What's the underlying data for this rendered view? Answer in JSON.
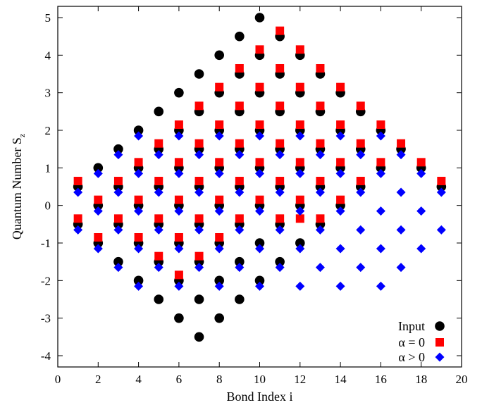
{
  "chart_data": {
    "type": "scatter",
    "xlabel": "Bond Index i",
    "ylabel": "Quantum Number S",
    "ylabel_sub": "z",
    "xlim": [
      0,
      20
    ],
    "ylim": [
      -4.3,
      5.3
    ],
    "x_ticks": [
      0,
      2,
      4,
      6,
      8,
      10,
      12,
      14,
      16,
      18,
      20
    ],
    "y_ticks": [
      -4,
      -3,
      -2,
      -1,
      0,
      1,
      2,
      3,
      4,
      5
    ],
    "legend_position": "bottom-right",
    "series": [
      {
        "name": "Input",
        "color": "#000000",
        "marker": "circle",
        "points": [
          [
            1,
            0.5
          ],
          [
            1,
            -0.5
          ],
          [
            2,
            1
          ],
          [
            2,
            0
          ],
          [
            2,
            -1
          ],
          [
            3,
            1.5
          ],
          [
            3,
            0.5
          ],
          [
            3,
            -0.5
          ],
          [
            3,
            -1.5
          ],
          [
            4,
            2
          ],
          [
            4,
            1
          ],
          [
            4,
            0
          ],
          [
            4,
            -1
          ],
          [
            4,
            -2
          ],
          [
            5,
            2.5
          ],
          [
            5,
            1.5
          ],
          [
            5,
            0.5
          ],
          [
            5,
            -0.5
          ],
          [
            5,
            -1.5
          ],
          [
            5,
            -2.5
          ],
          [
            6,
            3
          ],
          [
            6,
            2
          ],
          [
            6,
            1
          ],
          [
            6,
            0
          ],
          [
            6,
            -1
          ],
          [
            6,
            -2
          ],
          [
            6,
            -3
          ],
          [
            7,
            3.5
          ],
          [
            7,
            2.5
          ],
          [
            7,
            1.5
          ],
          [
            7,
            0.5
          ],
          [
            7,
            -0.5
          ],
          [
            7,
            -1.5
          ],
          [
            7,
            -2.5
          ],
          [
            7,
            -3.5
          ],
          [
            8,
            4
          ],
          [
            8,
            3
          ],
          [
            8,
            2
          ],
          [
            8,
            1
          ],
          [
            8,
            0
          ],
          [
            8,
            -1
          ],
          [
            8,
            -2
          ],
          [
            8,
            -3
          ],
          [
            9,
            4.5
          ],
          [
            9,
            3.5
          ],
          [
            9,
            2.5
          ],
          [
            9,
            1.5
          ],
          [
            9,
            0.5
          ],
          [
            9,
            -0.5
          ],
          [
            9,
            -1.5
          ],
          [
            9,
            -2.5
          ],
          [
            10,
            5
          ],
          [
            10,
            4
          ],
          [
            10,
            3
          ],
          [
            10,
            2
          ],
          [
            10,
            1
          ],
          [
            10,
            0
          ],
          [
            10,
            -1
          ],
          [
            10,
            -2
          ],
          [
            11,
            4.5
          ],
          [
            11,
            3.5
          ],
          [
            11,
            2.5
          ],
          [
            11,
            1.5
          ],
          [
            11,
            0.5
          ],
          [
            11,
            -0.5
          ],
          [
            11,
            -1.5
          ],
          [
            12,
            4
          ],
          [
            12,
            3
          ],
          [
            12,
            2
          ],
          [
            12,
            1
          ],
          [
            12,
            0
          ],
          [
            12,
            -1
          ],
          [
            13,
            3.5
          ],
          [
            13,
            2.5
          ],
          [
            13,
            1.5
          ],
          [
            13,
            0.5
          ],
          [
            13,
            -0.5
          ],
          [
            14,
            3
          ],
          [
            14,
            2
          ],
          [
            14,
            1
          ],
          [
            14,
            0
          ],
          [
            15,
            2.5
          ],
          [
            15,
            1.5
          ],
          [
            15,
            0.5
          ],
          [
            16,
            2
          ],
          [
            16,
            1
          ],
          [
            17,
            1.5
          ],
          [
            18,
            1
          ],
          [
            19,
            0.5
          ]
        ]
      },
      {
        "name": "α = 0",
        "color": "#ff0000",
        "marker": "square",
        "points": [
          [
            1,
            0.65
          ],
          [
            1,
            -0.35
          ],
          [
            2,
            0.15
          ],
          [
            2,
            -0.85
          ],
          [
            3,
            0.65
          ],
          [
            3,
            -0.35
          ],
          [
            4,
            1.15
          ],
          [
            4,
            0.15
          ],
          [
            4,
            -0.85
          ],
          [
            5,
            1.65
          ],
          [
            5,
            0.65
          ],
          [
            5,
            -0.35
          ],
          [
            5,
            -1.35
          ],
          [
            6,
            2.15
          ],
          [
            6,
            1.15
          ],
          [
            6,
            0.15
          ],
          [
            6,
            -0.85
          ],
          [
            6,
            -1.85
          ],
          [
            7,
            2.65
          ],
          [
            7,
            1.65
          ],
          [
            7,
            0.65
          ],
          [
            7,
            -0.35
          ],
          [
            7,
            -1.35
          ],
          [
            8,
            3.15
          ],
          [
            8,
            2.15
          ],
          [
            8,
            1.15
          ],
          [
            8,
            0.15
          ],
          [
            8,
            -0.85
          ],
          [
            9,
            3.65
          ],
          [
            9,
            2.65
          ],
          [
            9,
            1.65
          ],
          [
            9,
            0.65
          ],
          [
            9,
            -0.35
          ],
          [
            10,
            4.15
          ],
          [
            10,
            3.15
          ],
          [
            10,
            2.15
          ],
          [
            10,
            1.15
          ],
          [
            10,
            0.15
          ],
          [
            11,
            4.65
          ],
          [
            11,
            3.65
          ],
          [
            11,
            2.65
          ],
          [
            11,
            1.65
          ],
          [
            11,
            0.65
          ],
          [
            11,
            -0.35
          ],
          [
            12,
            4.15
          ],
          [
            12,
            3.15
          ],
          [
            12,
            2.15
          ],
          [
            12,
            1.15
          ],
          [
            12,
            0.15
          ],
          [
            12,
            -0.35
          ],
          [
            13,
            3.65
          ],
          [
            13,
            2.65
          ],
          [
            13,
            1.65
          ],
          [
            13,
            0.65
          ],
          [
            13,
            -0.35
          ],
          [
            14,
            3.15
          ],
          [
            14,
            2.15
          ],
          [
            14,
            1.15
          ],
          [
            14,
            0.15
          ],
          [
            15,
            2.65
          ],
          [
            15,
            1.65
          ],
          [
            15,
            0.65
          ],
          [
            16,
            2.15
          ],
          [
            16,
            1.15
          ],
          [
            17,
            1.65
          ],
          [
            18,
            1.15
          ],
          [
            19,
            0.65
          ]
        ]
      },
      {
        "name": "α > 0",
        "color": "#0000ff",
        "marker": "diamond",
        "points": [
          [
            1,
            0.35
          ],
          [
            1,
            -0.65
          ],
          [
            2,
            0.85
          ],
          [
            2,
            -0.15
          ],
          [
            2,
            -1.15
          ],
          [
            3,
            1.35
          ],
          [
            3,
            0.35
          ],
          [
            3,
            -0.65
          ],
          [
            3,
            -1.65
          ],
          [
            4,
            1.85
          ],
          [
            4,
            0.85
          ],
          [
            4,
            -0.15
          ],
          [
            4,
            -1.15
          ],
          [
            4,
            -2.15
          ],
          [
            5,
            1.35
          ],
          [
            5,
            0.35
          ],
          [
            5,
            -0.65
          ],
          [
            5,
            -1.65
          ],
          [
            6,
            1.85
          ],
          [
            6,
            0.85
          ],
          [
            6,
            -0.15
          ],
          [
            6,
            -1.15
          ],
          [
            6,
            -2.15
          ],
          [
            7,
            1.35
          ],
          [
            7,
            0.35
          ],
          [
            7,
            -0.65
          ],
          [
            7,
            -1.65
          ],
          [
            8,
            1.85
          ],
          [
            8,
            0.85
          ],
          [
            8,
            -0.15
          ],
          [
            8,
            -1.15
          ],
          [
            8,
            -2.15
          ],
          [
            9,
            1.35
          ],
          [
            9,
            0.35
          ],
          [
            9,
            -0.65
          ],
          [
            9,
            -1.65
          ],
          [
            10,
            1.85
          ],
          [
            10,
            0.85
          ],
          [
            10,
            -0.15
          ],
          [
            10,
            -1.15
          ],
          [
            10,
            -2.15
          ],
          [
            11,
            1.35
          ],
          [
            11,
            0.35
          ],
          [
            11,
            -0.65
          ],
          [
            11,
            -1.65
          ],
          [
            12,
            1.85
          ],
          [
            12,
            0.85
          ],
          [
            12,
            -0.15
          ],
          [
            12,
            -1.15
          ],
          [
            12,
            -2.15
          ],
          [
            13,
            1.35
          ],
          [
            13,
            0.35
          ],
          [
            13,
            -0.65
          ],
          [
            13,
            -1.65
          ],
          [
            14,
            1.85
          ],
          [
            14,
            0.85
          ],
          [
            14,
            -0.15
          ],
          [
            14,
            -1.15
          ],
          [
            14,
            -2.15
          ],
          [
            15,
            1.35
          ],
          [
            15,
            0.35
          ],
          [
            15,
            -0.65
          ],
          [
            15,
            -1.65
          ],
          [
            16,
            1.85
          ],
          [
            16,
            0.85
          ],
          [
            16,
            -0.15
          ],
          [
            16,
            -1.15
          ],
          [
            16,
            -2.15
          ],
          [
            17,
            1.35
          ],
          [
            17,
            0.35
          ],
          [
            17,
            -0.65
          ],
          [
            17,
            -1.65
          ],
          [
            18,
            0.85
          ],
          [
            18,
            -0.15
          ],
          [
            18,
            -1.15
          ],
          [
            19,
            0.35
          ],
          [
            19,
            -0.65
          ]
        ]
      }
    ]
  }
}
